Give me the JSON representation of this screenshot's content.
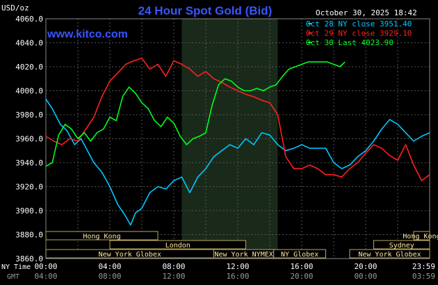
{
  "header": {
    "title": "24 Hour Spot Gold (Bid)",
    "date": "October 30, 2025 18:42",
    "unit": "USD/oz",
    "site": "www.kitco.com"
  },
  "legend": [
    {
      "label": "Oct 28 NY close 3951.40",
      "color": "#00c8ff"
    },
    {
      "label": "Oct 29 NY close 3929.10",
      "color": "#ff2020"
    },
    {
      "label": "Oct 30 Last 4023.90",
      "color": "#00ff20"
    }
  ],
  "sessions": [
    {
      "label": "Hong Kong",
      "start": 0.0,
      "end": 7.0
    },
    {
      "label": "Hong Kong",
      "start": 23.0,
      "end": 24.0
    },
    {
      "label": "London",
      "start": 4.0,
      "end": 12.5
    },
    {
      "label": "Sydney",
      "start": 20.5,
      "end": 24.0
    },
    {
      "label": "New York Globex",
      "start": 0.0,
      "end": 10.5
    },
    {
      "label": "New York NYMEX",
      "start": 10.5,
      "end": 14.25
    },
    {
      "label": "NY Globex",
      "start": 14.25,
      "end": 17.5
    },
    {
      "label": "New York Globex",
      "start": 19.0,
      "end": 24.0
    }
  ],
  "footer": {
    "ny_label": "NY Time",
    "gmt_label": "GMT"
  },
  "chart_data": {
    "type": "line",
    "title": "24 Hour Spot Gold (Bid)",
    "ylabel": "USD/oz",
    "ylim": [
      3860,
      4060
    ],
    "yticks": [
      "4060.0",
      "4040.0",
      "4020.0",
      "4000.0",
      "3980.0",
      "3960.0",
      "3940.0",
      "3920.0",
      "3900.0",
      "3880.0",
      "3860.0"
    ],
    "xlim": [
      0,
      24
    ],
    "xticks_ny": [
      "00:00",
      "04:00",
      "08:00",
      "12:00",
      "16:00",
      "20:00",
      "23:59"
    ],
    "xticks_gmt": [
      "04:00",
      "08:00",
      "12:00",
      "16:00",
      "20:00",
      "00:00",
      "03:59"
    ],
    "grid": true,
    "shaded_region": [
      8.5,
      14.5
    ],
    "series": [
      {
        "name": "Oct 28 NY close 3951.40",
        "color": "#00c8ff",
        "x": [
          0,
          0.4,
          0.9,
          1.3,
          1.8,
          2.2,
          2.6,
          3.0,
          3.5,
          4.0,
          4.5,
          5.0,
          5.3,
          5.6,
          6.0,
          6.5,
          7.0,
          7.5,
          8.0,
          8.5,
          9.0,
          9.5,
          10.0,
          10.5,
          11.0,
          11.5,
          12.0,
          12.5,
          13.0,
          13.5,
          14.0,
          14.5,
          15.0,
          15.5,
          16.0,
          16.5,
          17.0,
          17.5,
          18.0,
          18.5,
          19.0,
          19.5,
          20.0,
          20.5,
          21.0,
          21.5,
          22.0,
          22.5,
          23.0,
          23.5,
          24.0
        ],
        "y": [
          3993,
          3985,
          3972,
          3967,
          3955,
          3960,
          3950,
          3940,
          3932,
          3920,
          3905,
          3895,
          3888,
          3898,
          3902,
          3915,
          3920,
          3918,
          3925,
          3928,
          3915,
          3928,
          3935,
          3945,
          3950,
          3955,
          3952,
          3960,
          3955,
          3965,
          3963,
          3955,
          3950,
          3952,
          3955,
          3952,
          3952,
          3952,
          3940,
          3935,
          3938,
          3945,
          3950,
          3958,
          3968,
          3976,
          3972,
          3965,
          3958,
          3962,
          3965
        ]
      },
      {
        "name": "Oct 29 NY close 3929.10",
        "color": "#ff2020",
        "x": [
          0,
          0.5,
          1.0,
          1.5,
          2.0,
          2.5,
          3.0,
          3.5,
          4.0,
          4.5,
          5.0,
          5.5,
          6.0,
          6.5,
          7.0,
          7.5,
          8.0,
          8.5,
          9.0,
          9.5,
          10.0,
          10.5,
          11.0,
          11.5,
          12.0,
          12.5,
          13.0,
          13.5,
          14.0,
          14.5,
          15.0,
          15.5,
          16.0,
          16.5,
          17.0,
          17.5,
          18.0,
          18.5,
          19.0,
          19.5,
          20.0,
          20.5,
          21.0,
          21.5,
          22.0,
          22.5,
          23.0,
          23.5,
          24.0
        ],
        "y": [
          3962,
          3958,
          3955,
          3960,
          3958,
          3968,
          3978,
          3995,
          4008,
          4015,
          4022,
          4025,
          4027,
          4018,
          4022,
          4012,
          4025,
          4022,
          4018,
          4012,
          4016,
          4010,
          4007,
          4003,
          4000,
          3997,
          3995,
          3992,
          3990,
          3980,
          3945,
          3935,
          3935,
          3938,
          3935,
          3930,
          3930,
          3928,
          3935,
          3940,
          3948,
          3955,
          3952,
          3946,
          3942,
          3955,
          3938,
          3925,
          3930
        ]
      },
      {
        "name": "Oct 30 Last 4023.90",
        "color": "#00ff20",
        "x": [
          0,
          0.4,
          0.8,
          1.2,
          1.6,
          2.0,
          2.4,
          2.8,
          3.2,
          3.6,
          4.0,
          4.4,
          4.8,
          5.2,
          5.6,
          6.0,
          6.4,
          6.8,
          7.2,
          7.6,
          8.0,
          8.4,
          8.8,
          9.2,
          9.6,
          10.0,
          10.4,
          10.8,
          11.2,
          11.6,
          12.0,
          12.4,
          12.8,
          13.2,
          13.6,
          14.0,
          14.4,
          14.8,
          15.2,
          15.6,
          16.0,
          16.4,
          16.8,
          17.2,
          17.6,
          18.0,
          18.4,
          18.7
        ],
        "y": [
          3937,
          3940,
          3963,
          3972,
          3968,
          3960,
          3965,
          3958,
          3965,
          3968,
          3978,
          3975,
          3995,
          4003,
          3998,
          3990,
          3985,
          3975,
          3970,
          3978,
          3973,
          3962,
          3955,
          3960,
          3962,
          3965,
          3988,
          4005,
          4010,
          4008,
          4003,
          4000,
          4000,
          4002,
          4000,
          4003,
          4005,
          4012,
          4018,
          4020,
          4022,
          4024,
          4024,
          4024,
          4024,
          4022,
          4020,
          4024
        ]
      }
    ]
  }
}
